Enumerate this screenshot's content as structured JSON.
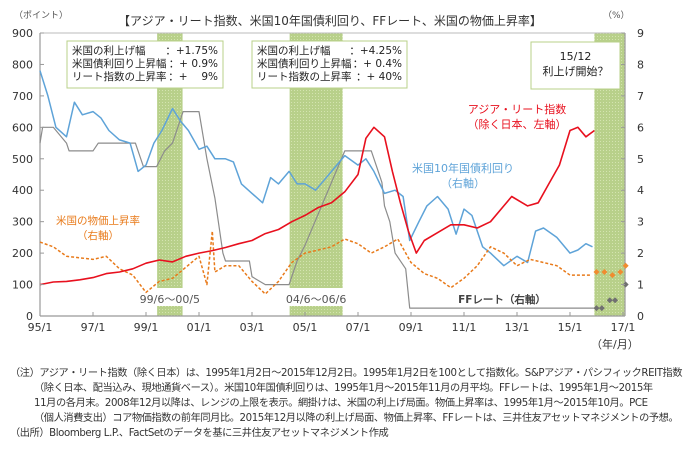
{
  "chart_data": {
    "type": "line",
    "title": "【アジア・リート指数、米国10年国債利回り、FFレート、米国の物価上昇率】",
    "left_axis_label": "（ポイント）",
    "right_axis_label": "（%）",
    "x_axis_unit_label": "（年/月）",
    "left_ylim": [
      0,
      900
    ],
    "right_ylim": [
      0,
      9
    ],
    "xlim": [
      1995.0,
      2017.2
    ],
    "left_ticks": [
      "0",
      "100",
      "200",
      "300",
      "400",
      "500",
      "600",
      "700",
      "800",
      "900"
    ],
    "right_ticks": [
      "0",
      "1",
      "2",
      "3",
      "4",
      "5",
      "6",
      "7",
      "8",
      "9"
    ],
    "x_ticks": [
      {
        "label": "95/1",
        "x": 1995.0
      },
      {
        "label": "97/1",
        "x": 1997.0
      },
      {
        "label": "99/1",
        "x": 1999.0
      },
      {
        "label": "01/1",
        "x": 2001.0
      },
      {
        "label": "03/1",
        "x": 2003.0
      },
      {
        "label": "05/1",
        "x": 2005.0
      },
      {
        "label": "07/1",
        "x": 2007.0
      },
      {
        "label": "09/1",
        "x": 2009.0
      },
      {
        "label": "11/1",
        "x": 2011.0
      },
      {
        "label": "13/1",
        "x": 2013.0
      },
      {
        "label": "15/1",
        "x": 2015.0
      },
      {
        "label": "17/1",
        "x": 2017.0
      }
    ],
    "shaded_periods": [
      {
        "from": 1999.42,
        "to": 2000.38,
        "label": "99/6～00/5"
      },
      {
        "from": 2004.42,
        "to": 2006.42,
        "label": "04/6～06/6"
      },
      {
        "from": 2015.92,
        "to": 2017.2,
        "label": ""
      }
    ],
    "series": [
      {
        "name": "アジア・リート指数（除く日本、左軸）",
        "axis": "left",
        "color": "#e8101e",
        "style": "solid",
        "x": [
          1995.0,
          1995.5,
          1996.0,
          1996.5,
          1997.0,
          1997.5,
          1998.0,
          1998.5,
          1999.0,
          1999.5,
          2000.0,
          2000.5,
          2001.0,
          2001.5,
          2002.0,
          2002.5,
          2003.0,
          2003.5,
          2004.0,
          2004.5,
          2005.0,
          2005.5,
          2006.0,
          2006.5,
          2007.0,
          2007.3,
          2007.6,
          2008.0,
          2008.3,
          2008.6,
          2008.9,
          2009.2,
          2009.5,
          2010.0,
          2010.5,
          2011.0,
          2011.5,
          2012.0,
          2012.5,
          2012.8,
          2013.2,
          2013.4,
          2013.8,
          2014.2,
          2014.6,
          2015.0,
          2015.3,
          2015.6,
          2015.92
        ],
        "values": [
          100,
          108,
          110,
          115,
          122,
          135,
          140,
          150,
          168,
          178,
          172,
          190,
          200,
          208,
          218,
          230,
          240,
          262,
          275,
          300,
          320,
          345,
          360,
          395,
          450,
          565,
          600,
          570,
          460,
          360,
          270,
          200,
          240,
          265,
          290,
          290,
          280,
          300,
          350,
          380,
          360,
          350,
          360,
          420,
          480,
          590,
          600,
          570,
          590
        ]
      },
      {
        "name": "米国10年国債利回り（右軸）",
        "axis": "right",
        "color": "#5ea3d8",
        "style": "solid",
        "x": [
          1995.0,
          1995.3,
          1995.6,
          1996.0,
          1996.3,
          1996.6,
          1997.0,
          1997.3,
          1997.6,
          1998.0,
          1998.4,
          1998.7,
          1999.0,
          1999.3,
          1999.6,
          2000.0,
          2000.3,
          2000.6,
          2001.0,
          2001.3,
          2001.6,
          2002.0,
          2002.3,
          2002.6,
          2003.0,
          2003.4,
          2003.7,
          2004.0,
          2004.4,
          2004.7,
          2005.0,
          2005.4,
          2005.7,
          2006.0,
          2006.5,
          2007.0,
          2007.3,
          2007.6,
          2008.0,
          2008.4,
          2008.7,
          2008.95,
          2009.3,
          2009.6,
          2010.0,
          2010.4,
          2010.7,
          2011.0,
          2011.3,
          2011.7,
          2012.0,
          2012.5,
          2013.0,
          2013.4,
          2013.7,
          2014.0,
          2014.5,
          2015.0,
          2015.3,
          2015.6,
          2015.85
        ],
        "values": [
          7.8,
          7.0,
          6.0,
          5.7,
          6.8,
          6.4,
          6.5,
          6.3,
          5.9,
          5.6,
          5.5,
          4.6,
          4.8,
          5.5,
          5.9,
          6.6,
          6.2,
          5.9,
          5.3,
          5.4,
          5.0,
          5.0,
          4.9,
          4.2,
          3.9,
          3.6,
          4.4,
          4.2,
          4.6,
          4.2,
          4.2,
          4.0,
          4.3,
          4.6,
          5.1,
          4.8,
          5.0,
          4.6,
          3.9,
          4.0,
          3.8,
          2.4,
          3.0,
          3.5,
          3.8,
          3.4,
          2.6,
          3.4,
          3.2,
          2.2,
          2.0,
          1.6,
          1.9,
          1.7,
          2.7,
          2.8,
          2.5,
          2.0,
          2.1,
          2.3,
          2.2
        ]
      },
      {
        "name": "FFレート（右軸）",
        "axis": "right",
        "color": "#8c8c8c",
        "style": "solid",
        "x": [
          1995.0,
          1995.1,
          1995.5,
          1996.0,
          1996.1,
          1997.0,
          1997.2,
          1998.6,
          1998.9,
          1999.4,
          1999.7,
          2000.0,
          2000.4,
          2001.0,
          2001.3,
          2001.6,
          2001.9,
          2002.0,
          2002.9,
          2003.0,
          2003.5,
          2004.4,
          2004.7,
          2005.0,
          2005.5,
          2006.0,
          2006.5,
          2007.0,
          2007.5,
          2007.7,
          2007.9,
          2008.0,
          2008.2,
          2008.4,
          2008.8,
          2008.95,
          2009.5,
          2012.0,
          2015.0,
          2015.9
        ],
        "values": [
          5.5,
          6.0,
          6.0,
          5.5,
          5.25,
          5.25,
          5.5,
          5.5,
          4.75,
          4.75,
          5.25,
          5.5,
          6.5,
          6.5,
          5.0,
          3.75,
          2.0,
          1.75,
          1.75,
          1.25,
          1.0,
          1.0,
          1.75,
          2.25,
          3.25,
          4.25,
          5.25,
          5.25,
          5.25,
          4.75,
          4.25,
          3.5,
          3.0,
          2.0,
          1.5,
          0.25,
          0.25,
          0.25,
          0.25,
          0.25
        ]
      },
      {
        "name": "米国の物価上昇率（右軸）",
        "axis": "right",
        "color": "#e87a1a",
        "style": "dashed",
        "x": [
          1995.0,
          1995.5,
          1996.0,
          1996.5,
          1997.0,
          1997.5,
          1998.0,
          1998.5,
          1999.0,
          1999.5,
          2000.0,
          2000.5,
          2001.0,
          2001.3,
          2001.5,
          2001.6,
          2002.0,
          2002.5,
          2003.0,
          2003.5,
          2004.0,
          2004.5,
          2005.0,
          2005.5,
          2006.0,
          2006.5,
          2007.0,
          2007.5,
          2008.0,
          2008.5,
          2009.0,
          2009.5,
          2010.0,
          2010.5,
          2011.0,
          2011.5,
          2012.0,
          2012.5,
          2013.0,
          2013.5,
          2014.0,
          2014.5,
          2015.0,
          2015.5,
          2015.8
        ],
        "values": [
          2.35,
          2.2,
          1.9,
          1.85,
          1.8,
          1.9,
          1.5,
          1.3,
          0.75,
          1.1,
          1.2,
          1.55,
          1.9,
          1.0,
          2.7,
          1.4,
          1.6,
          1.6,
          1.1,
          0.7,
          1.1,
          1.7,
          2.0,
          2.1,
          2.2,
          2.45,
          2.3,
          2.0,
          2.2,
          2.45,
          1.7,
          1.35,
          1.2,
          0.9,
          1.2,
          1.6,
          2.2,
          2.0,
          1.6,
          1.8,
          1.7,
          1.6,
          1.3,
          1.3,
          1.3
        ]
      }
    ],
    "forecast_points": {
      "inflation": {
        "color": "#f08c30",
        "marker": "diamond",
        "x": [
          2016.0,
          2016.3,
          2016.6,
          2016.9,
          2017.1
        ],
        "values": [
          1.4,
          1.4,
          1.3,
          1.4,
          1.6
        ]
      },
      "ff_rate": {
        "color": "#707070",
        "marker": "diamond",
        "x": [
          2016.0,
          2016.2,
          2016.5,
          2016.7,
          2017.1
        ],
        "values": [
          0.25,
          0.25,
          0.5,
          0.5,
          1.0
        ]
      }
    },
    "annotations": [
      {
        "id": "box1",
        "lines": [
          [
            "米国の利上げ幅",
            "：+1.75%"
          ],
          [
            "米国債利回り上昇幅",
            "：+ 0.9%"
          ],
          [
            "リート指数の上昇率",
            "：+　 9%"
          ]
        ]
      },
      {
        "id": "box2",
        "lines": [
          [
            "米国の利上げ幅",
            "：+4.25%"
          ],
          [
            "米国債利回り上昇幅",
            "：+ 0.4%"
          ],
          [
            "リート指数の上昇率",
            "：+  40%"
          ]
        ]
      },
      {
        "id": "box3",
        "lines": [
          [
            "15/12"
          ],
          [
            "利上げ開始？"
          ]
        ]
      }
    ],
    "series_labels": {
      "reit": [
        "アジア・リート指数",
        "（除く日本、左軸）"
      ],
      "tsy": [
        "米国10年国債利回り",
        "（右軸）"
      ],
      "cpi": [
        "米国の物価上昇率",
        "（右軸）"
      ],
      "ff": [
        "FFレート（右軸）"
      ]
    }
  },
  "notes": [
    "（注）アジア・リート指数（除く日本）は、1995年1月2日～2015年12月2日。1995年1月2日を100として指数化。S&Pアジア・パシフィックREIT指数",
    "（除く日本、配当込み、現地通貨ベース）。米国10年国債利回りは、1995年1月～2015年11月の月平均。FFレートは、1995年1月～2015年",
    "11月の各月末。2008年12月以降は、レンジの上限を表示。網掛けは、米国の利上げ局面。物価上昇率は、1995年1月～2015年10月。PCE",
    "（個人消費支出）コア物価指数の前年同月比。2015年12月以降の利上げ局面、物価上昇率、FFレートは、三井住友アセットマネジメントの予想。",
    "（出所）Bloomberg L.P.、FactSetのデータを基に三井住友アセットマネジメント作成"
  ]
}
